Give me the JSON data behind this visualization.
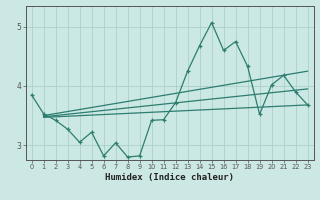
{
  "xlabel": "Humidex (Indice chaleur)",
  "line_color": "#2d7d70",
  "bg_color": "#cce8e4",
  "grid_color": "#aacfca",
  "axis_color": "#555555",
  "xlim": [
    -0.5,
    23.5
  ],
  "ylim": [
    2.75,
    5.35
  ],
  "yticks": [
    3,
    4,
    5
  ],
  "xticks": [
    0,
    1,
    2,
    3,
    4,
    5,
    6,
    7,
    8,
    9,
    10,
    11,
    12,
    13,
    14,
    15,
    16,
    17,
    18,
    19,
    20,
    21,
    22,
    23
  ],
  "main_x": [
    0,
    1,
    2,
    3,
    4,
    5,
    6,
    7,
    8,
    9,
    10,
    11,
    12,
    13,
    14,
    15,
    16,
    17,
    18,
    19,
    20,
    21,
    22,
    23
  ],
  "main_y": [
    3.85,
    3.53,
    3.42,
    3.27,
    3.05,
    3.22,
    2.82,
    3.04,
    2.8,
    2.82,
    3.42,
    3.43,
    3.72,
    4.25,
    4.68,
    5.07,
    4.6,
    4.75,
    4.33,
    3.52,
    4.02,
    4.18,
    3.9,
    3.68
  ],
  "trend1_x": [
    1,
    23
  ],
  "trend1_y": [
    3.5,
    4.25
  ],
  "trend2_x": [
    1,
    23
  ],
  "trend2_y": [
    3.48,
    3.95
  ],
  "trend3_x": [
    1,
    23
  ],
  "trend3_y": [
    3.47,
    3.68
  ]
}
